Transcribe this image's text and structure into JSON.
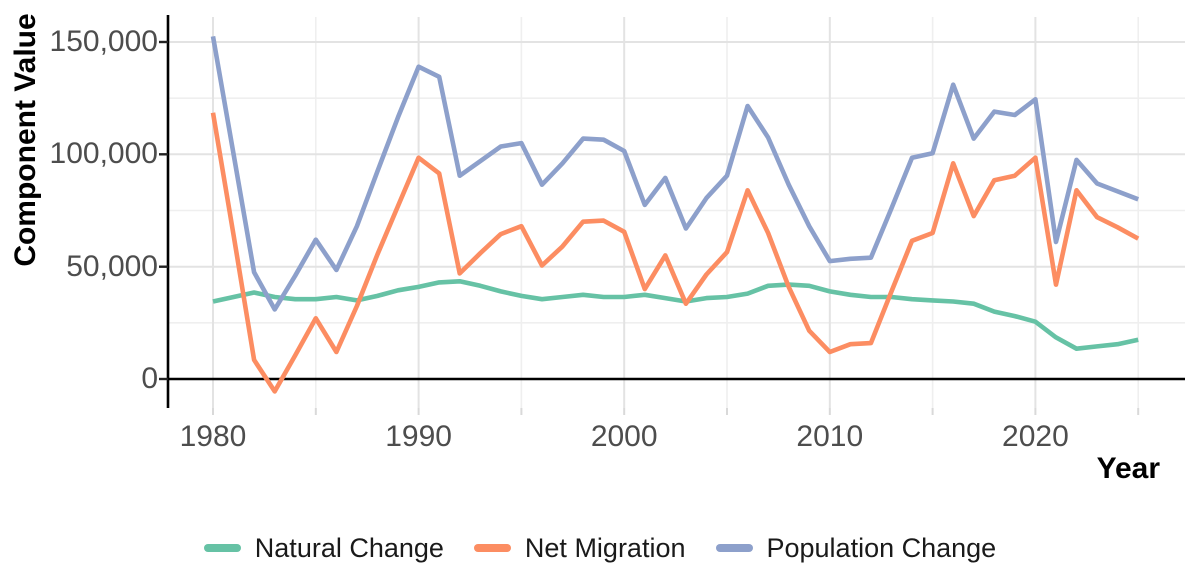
{
  "chart_data": {
    "type": "line",
    "title": "",
    "xlabel": "Year",
    "ylabel": "Component Value",
    "legend_position": "bottom",
    "grid": true,
    "xlim": [
      1977.8,
      2027.3
    ],
    "ylim": [
      -13000,
      161000
    ],
    "x": [
      1980,
      1981,
      1982,
      1983,
      1984,
      1985,
      1986,
      1987,
      1988,
      1989,
      1990,
      1991,
      1992,
      1993,
      1994,
      1995,
      1996,
      1997,
      1998,
      1999,
      2000,
      2001,
      2002,
      2003,
      2004,
      2005,
      2006,
      2007,
      2008,
      2009,
      2010,
      2011,
      2012,
      2013,
      2014,
      2015,
      2016,
      2017,
      2018,
      2019,
      2020,
      2021,
      2022,
      2023,
      2024,
      2025
    ],
    "x_ticks": {
      "major": [
        1980,
        1990,
        2000,
        2010,
        2020
      ],
      "minor": [
        1985,
        1995,
        2005,
        2015,
        2025
      ]
    },
    "x_tick_labels": [
      "1980",
      "1990",
      "2000",
      "2010",
      "2020"
    ],
    "y_ticks": {
      "major": [
        0,
        50000,
        100000,
        150000
      ],
      "minor": [
        25000,
        75000,
        125000
      ]
    },
    "y_tick_labels": [
      "0",
      "50,000",
      "100,000",
      "150,000"
    ],
    "zero_line_color": "#000000",
    "axis_line_color": "#000000",
    "grid_major_color": "#e3e3e3",
    "grid_minor_color": "#efefef",
    "tick_label_color": "#4d4d4d",
    "series": [
      {
        "name": "Natural Change",
        "color": "#66C2A5",
        "values": [
          34500,
          36500,
          38500,
          36500,
          35500,
          35500,
          36500,
          35000,
          37000,
          39500,
          41000,
          43000,
          43500,
          41500,
          39000,
          37000,
          35500,
          36500,
          37500,
          36500,
          36500,
          37500,
          36000,
          34500,
          36000,
          36500,
          38000,
          41500,
          42000,
          41500,
          39000,
          37500,
          36500,
          36500,
          35500,
          35000,
          34500,
          33500,
          30000,
          28000,
          25500,
          18500,
          13500,
          14500,
          15500,
          17500
        ]
      },
      {
        "name": "Net Migration",
        "color": "#FC8D62",
        "values": [
          118500,
          64000,
          8500,
          -5500,
          10500,
          27000,
          12000,
          32500,
          55500,
          77000,
          98500,
          91500,
          47000,
          56000,
          64500,
          68000,
          50500,
          59000,
          70000,
          70500,
          65500,
          40000,
          55000,
          33500,
          46500,
          56500,
          84000,
          65000,
          41000,
          21500,
          12000,
          15500,
          16000,
          39000,
          61500,
          65000,
          96000,
          72500,
          88500,
          90500,
          98500,
          42000,
          84000,
          72000,
          67500,
          62500
        ]
      },
      {
        "name": "Population Change",
        "color": "#8DA0CB",
        "values": [
          152500,
          100000,
          47500,
          31000,
          46000,
          62000,
          48500,
          68000,
          92500,
          116500,
          139000,
          134500,
          90500,
          97000,
          103500,
          105000,
          86500,
          96000,
          107000,
          106500,
          101500,
          77500,
          89500,
          67000,
          80500,
          90500,
          121500,
          107500,
          86500,
          68000,
          52500,
          53500,
          54000,
          76000,
          98500,
          100500,
          131000,
          107000,
          119000,
          117500,
          124500,
          61000,
          97500,
          87000,
          83500,
          80000
        ]
      }
    ]
  }
}
